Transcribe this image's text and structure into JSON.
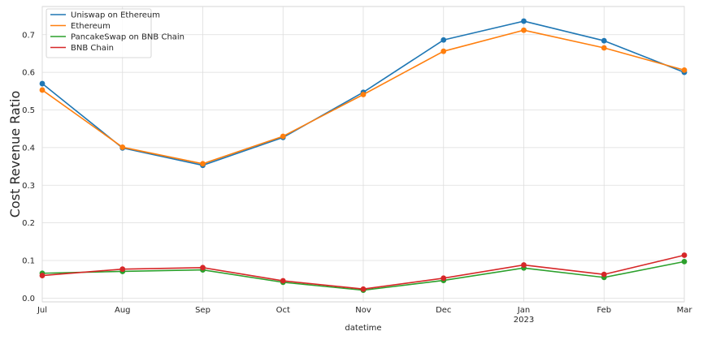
{
  "chart_data": {
    "type": "line",
    "title": "",
    "xlabel": "datetime",
    "ylabel": "Cost Revenue Ratio",
    "x": [
      "Jul",
      "Aug",
      "Sep",
      "Oct",
      "Nov",
      "Dec",
      "Jan",
      "Feb",
      "Mar"
    ],
    "x_sublabels": {
      "Jan": "2023"
    },
    "ylim": [
      -0.01,
      0.775
    ],
    "y_ticks": [
      "0.0",
      "0.1",
      "0.2",
      "0.3",
      "0.4",
      "0.5",
      "0.6",
      "0.7"
    ],
    "grid": true,
    "legend_position": "top-left",
    "series": [
      {
        "name": "Uniswap on Ethereum",
        "color": "#1f77b4",
        "values": [
          0.57,
          0.399,
          0.353,
          0.427,
          0.547,
          0.686,
          0.736,
          0.684,
          0.6
        ]
      },
      {
        "name": "Ethereum",
        "color": "#ff7f0e",
        "values": [
          0.553,
          0.401,
          0.357,
          0.43,
          0.541,
          0.656,
          0.712,
          0.665,
          0.606
        ]
      },
      {
        "name": "PancakeSwap on BNB Chain",
        "color": "#2ca02c",
        "values": [
          0.066,
          0.071,
          0.075,
          0.042,
          0.021,
          0.047,
          0.08,
          0.055,
          0.097
        ]
      },
      {
        "name": "BNB Chain",
        "color": "#d62728",
        "values": [
          0.06,
          0.077,
          0.081,
          0.046,
          0.024,
          0.053,
          0.088,
          0.063,
          0.114
        ]
      }
    ]
  }
}
